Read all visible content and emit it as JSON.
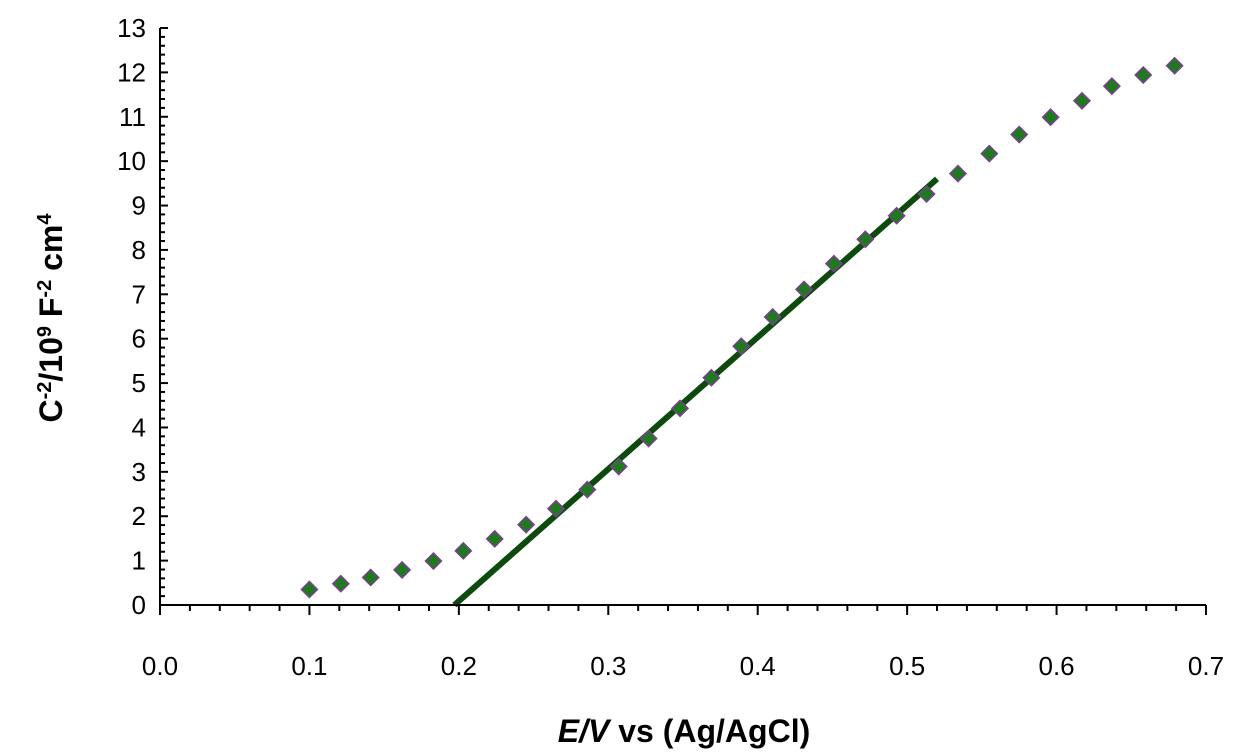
{
  "chart_data": {
    "type": "scatter",
    "xlim": [
      0.0,
      0.7
    ],
    "ylim": [
      0,
      13
    ],
    "x_ticks": [
      "0.0",
      "0.1",
      "0.2",
      "0.3",
      "0.4",
      "0.5",
      "0.6",
      "0.7"
    ],
    "y_ticks": [
      "0",
      "1",
      "2",
      "3",
      "4",
      "5",
      "6",
      "7",
      "8",
      "9",
      "10",
      "11",
      "12",
      "13"
    ],
    "xlabel": {
      "italic": "E/V",
      "rest": " vs (Ag/AgCl)"
    },
    "ylabel": {
      "p1": "C",
      "s1": "-2",
      "p2": "/10",
      "s2": "9",
      "p3": " F",
      "s3": "-2",
      "p4": " cm",
      "s4": "4"
    },
    "grid": false,
    "legend": "none",
    "series": [
      {
        "marker": "diamond",
        "color": "#1f7a1f",
        "points": [
          [
            0.1,
            0.35
          ],
          [
            0.121,
            0.48
          ],
          [
            0.141,
            0.62
          ],
          [
            0.162,
            0.79
          ],
          [
            0.183,
            0.99
          ],
          [
            0.203,
            1.22
          ],
          [
            0.224,
            1.49
          ],
          [
            0.245,
            1.81
          ],
          [
            0.265,
            2.17
          ],
          [
            0.286,
            2.6
          ],
          [
            0.307,
            3.12
          ],
          [
            0.327,
            3.75
          ],
          [
            0.348,
            4.43
          ],
          [
            0.369,
            5.12
          ],
          [
            0.389,
            5.83
          ],
          [
            0.41,
            6.49
          ],
          [
            0.431,
            7.11
          ],
          [
            0.451,
            7.69
          ],
          [
            0.472,
            8.24
          ],
          [
            0.493,
            8.77
          ],
          [
            0.513,
            9.26
          ],
          [
            0.534,
            9.72
          ],
          [
            0.555,
            10.17
          ],
          [
            0.575,
            10.6
          ],
          [
            0.596,
            10.99
          ],
          [
            0.617,
            11.36
          ],
          [
            0.637,
            11.69
          ],
          [
            0.658,
            11.94
          ],
          [
            0.679,
            12.15
          ]
        ]
      },
      {
        "type": "line",
        "color": "#0d4a0d",
        "points": [
          [
            0.197,
            0.0
          ],
          [
            0.52,
            9.6
          ]
        ]
      }
    ]
  }
}
